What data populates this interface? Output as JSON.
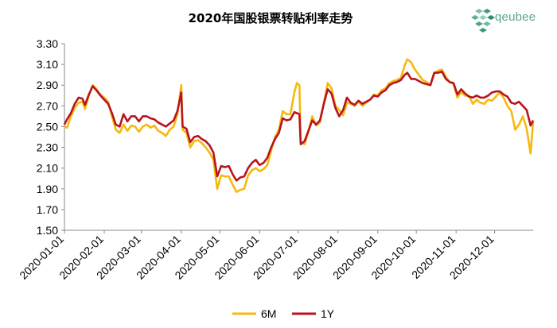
{
  "logo": {
    "text": "qeubee"
  },
  "chart_data": {
    "type": "line",
    "title": "2020年国股银票转贴利率走势",
    "xlabel": "",
    "ylabel": "",
    "ylim": [
      1.5,
      3.3
    ],
    "yticks": [
      "1.50",
      "1.70",
      "1.90",
      "2.10",
      "2.30",
      "2.50",
      "2.70",
      "2.90",
      "3.10",
      "3.30"
    ],
    "xlim": [
      "2020-01-01",
      "2020-12-31"
    ],
    "xticks": [
      "2020-01-01",
      "2020-02-01",
      "2020-03-01",
      "2020-04-01",
      "2020-05-01",
      "2020-06-01",
      "2020-07-01",
      "2020-08-01",
      "2020-09-01",
      "2020-10-01",
      "2020-11-01",
      "2020-12-01"
    ],
    "grid": false,
    "legend": "bottom-center",
    "series": [
      {
        "name": "6M",
        "color": "#f5b90f",
        "points": [
          [
            "2020-01-01",
            2.5
          ],
          [
            "2020-01-03",
            2.49
          ],
          [
            "2020-01-06",
            2.6
          ],
          [
            "2020-01-09",
            2.68
          ],
          [
            "2020-01-12",
            2.73
          ],
          [
            "2020-01-15",
            2.74
          ],
          [
            "2020-01-17",
            2.67
          ],
          [
            "2020-01-20",
            2.8
          ],
          [
            "2020-01-23",
            2.9
          ],
          [
            "2020-01-26",
            2.86
          ],
          [
            "2020-01-29",
            2.81
          ],
          [
            "2020-02-01",
            2.78
          ],
          [
            "2020-02-04",
            2.74
          ],
          [
            "2020-02-07",
            2.6
          ],
          [
            "2020-02-10",
            2.47
          ],
          [
            "2020-02-13",
            2.44
          ],
          [
            "2020-02-16",
            2.52
          ],
          [
            "2020-02-19",
            2.46
          ],
          [
            "2020-02-22",
            2.51
          ],
          [
            "2020-02-25",
            2.5
          ],
          [
            "2020-02-28",
            2.45
          ],
          [
            "2020-03-02",
            2.5
          ],
          [
            "2020-03-05",
            2.52
          ],
          [
            "2020-03-08",
            2.49
          ],
          [
            "2020-03-11",
            2.51
          ],
          [
            "2020-03-14",
            2.46
          ],
          [
            "2020-03-17",
            2.44
          ],
          [
            "2020-03-20",
            2.41
          ],
          [
            "2020-03-23",
            2.47
          ],
          [
            "2020-03-26",
            2.5
          ],
          [
            "2020-03-29",
            2.62
          ],
          [
            "2020-04-01",
            2.9
          ],
          [
            "2020-04-02",
            2.47
          ],
          [
            "2020-04-05",
            2.44
          ],
          [
            "2020-04-08",
            2.3
          ],
          [
            "2020-04-11",
            2.36
          ],
          [
            "2020-04-14",
            2.37
          ],
          [
            "2020-04-17",
            2.34
          ],
          [
            "2020-04-20",
            2.3
          ],
          [
            "2020-04-23",
            2.25
          ],
          [
            "2020-04-26",
            2.18
          ],
          [
            "2020-04-29",
            1.9
          ],
          [
            "2020-05-02",
            2.03
          ],
          [
            "2020-05-05",
            2.02
          ],
          [
            "2020-05-08",
            2.02
          ],
          [
            "2020-05-11",
            1.94
          ],
          [
            "2020-05-14",
            1.87
          ],
          [
            "2020-05-17",
            1.89
          ],
          [
            "2020-05-20",
            1.9
          ],
          [
            "2020-05-23",
            2.03
          ],
          [
            "2020-05-26",
            2.08
          ],
          [
            "2020-05-29",
            2.1
          ],
          [
            "2020-06-01",
            2.07
          ],
          [
            "2020-06-04",
            2.09
          ],
          [
            "2020-06-07",
            2.13
          ],
          [
            "2020-06-10",
            2.27
          ],
          [
            "2020-06-13",
            2.4
          ],
          [
            "2020-06-16",
            2.47
          ],
          [
            "2020-06-19",
            2.65
          ],
          [
            "2020-06-22",
            2.62
          ],
          [
            "2020-06-25",
            2.62
          ],
          [
            "2020-06-28",
            2.83
          ],
          [
            "2020-06-30",
            2.92
          ],
          [
            "2020-07-02",
            2.9
          ],
          [
            "2020-07-03",
            2.35
          ],
          [
            "2020-07-06",
            2.33
          ],
          [
            "2020-07-09",
            2.45
          ],
          [
            "2020-07-12",
            2.6
          ],
          [
            "2020-07-15",
            2.51
          ],
          [
            "2020-07-18",
            2.54
          ],
          [
            "2020-07-21",
            2.73
          ],
          [
            "2020-07-24",
            2.92
          ],
          [
            "2020-07-27",
            2.87
          ],
          [
            "2020-07-30",
            2.7
          ],
          [
            "2020-08-02",
            2.66
          ],
          [
            "2020-08-05",
            2.61
          ],
          [
            "2020-08-08",
            2.73
          ],
          [
            "2020-08-11",
            2.72
          ],
          [
            "2020-08-14",
            2.7
          ],
          [
            "2020-08-17",
            2.74
          ],
          [
            "2020-08-20",
            2.7
          ],
          [
            "2020-08-23",
            2.73
          ],
          [
            "2020-08-26",
            2.76
          ],
          [
            "2020-08-29",
            2.81
          ],
          [
            "2020-09-01",
            2.8
          ],
          [
            "2020-09-04",
            2.85
          ],
          [
            "2020-09-07",
            2.87
          ],
          [
            "2020-09-10",
            2.92
          ],
          [
            "2020-09-13",
            2.94
          ],
          [
            "2020-09-16",
            2.95
          ],
          [
            "2020-09-19",
            2.97
          ],
          [
            "2020-09-22",
            3.09
          ],
          [
            "2020-09-24",
            3.15
          ],
          [
            "2020-09-27",
            3.12
          ],
          [
            "2020-09-30",
            3.05
          ],
          [
            "2020-10-03",
            3.0
          ],
          [
            "2020-10-06",
            2.95
          ],
          [
            "2020-10-09",
            2.93
          ],
          [
            "2020-10-12",
            2.9
          ],
          [
            "2020-10-15",
            3.01
          ],
          [
            "2020-10-18",
            3.04
          ],
          [
            "2020-10-21",
            3.05
          ],
          [
            "2020-10-24",
            2.98
          ],
          [
            "2020-10-27",
            2.93
          ],
          [
            "2020-10-30",
            2.91
          ],
          [
            "2020-11-02",
            2.78
          ],
          [
            "2020-11-05",
            2.83
          ],
          [
            "2020-11-08",
            2.8
          ],
          [
            "2020-11-11",
            2.8
          ],
          [
            "2020-11-14",
            2.72
          ],
          [
            "2020-11-17",
            2.76
          ],
          [
            "2020-11-20",
            2.73
          ],
          [
            "2020-11-23",
            2.72
          ],
          [
            "2020-11-26",
            2.76
          ],
          [
            "2020-11-29",
            2.75
          ],
          [
            "2020-12-02",
            2.79
          ],
          [
            "2020-12-05",
            2.83
          ],
          [
            "2020-12-08",
            2.78
          ],
          [
            "2020-12-11",
            2.7
          ],
          [
            "2020-12-14",
            2.65
          ],
          [
            "2020-12-17",
            2.47
          ],
          [
            "2020-12-20",
            2.52
          ],
          [
            "2020-12-23",
            2.6
          ],
          [
            "2020-12-26",
            2.48
          ],
          [
            "2020-12-29",
            2.24
          ],
          [
            "2020-12-31",
            2.55
          ]
        ]
      },
      {
        "name": "1Y",
        "color": "#b8141f",
        "points": [
          [
            "2020-01-01",
            2.52
          ],
          [
            "2020-01-03",
            2.57
          ],
          [
            "2020-01-06",
            2.63
          ],
          [
            "2020-01-09",
            2.72
          ],
          [
            "2020-01-12",
            2.78
          ],
          [
            "2020-01-15",
            2.77
          ],
          [
            "2020-01-17",
            2.71
          ],
          [
            "2020-01-20",
            2.81
          ],
          [
            "2020-01-23",
            2.89
          ],
          [
            "2020-01-26",
            2.85
          ],
          [
            "2020-01-29",
            2.8
          ],
          [
            "2020-02-01",
            2.76
          ],
          [
            "2020-02-04",
            2.72
          ],
          [
            "2020-02-07",
            2.63
          ],
          [
            "2020-02-10",
            2.52
          ],
          [
            "2020-02-13",
            2.5
          ],
          [
            "2020-02-16",
            2.62
          ],
          [
            "2020-02-19",
            2.55
          ],
          [
            "2020-02-22",
            2.6
          ],
          [
            "2020-02-25",
            2.6
          ],
          [
            "2020-02-28",
            2.55
          ],
          [
            "2020-03-02",
            2.6
          ],
          [
            "2020-03-05",
            2.6
          ],
          [
            "2020-03-08",
            2.58
          ],
          [
            "2020-03-11",
            2.57
          ],
          [
            "2020-03-14",
            2.54
          ],
          [
            "2020-03-17",
            2.52
          ],
          [
            "2020-03-20",
            2.5
          ],
          [
            "2020-03-23",
            2.53
          ],
          [
            "2020-03-26",
            2.56
          ],
          [
            "2020-03-29",
            2.65
          ],
          [
            "2020-04-01",
            2.83
          ],
          [
            "2020-04-02",
            2.5
          ],
          [
            "2020-04-05",
            2.48
          ],
          [
            "2020-04-08",
            2.35
          ],
          [
            "2020-04-11",
            2.4
          ],
          [
            "2020-04-14",
            2.41
          ],
          [
            "2020-04-17",
            2.38
          ],
          [
            "2020-04-20",
            2.36
          ],
          [
            "2020-04-23",
            2.32
          ],
          [
            "2020-04-26",
            2.25
          ],
          [
            "2020-04-29",
            2.02
          ],
          [
            "2020-05-02",
            2.12
          ],
          [
            "2020-05-05",
            2.11
          ],
          [
            "2020-05-08",
            2.12
          ],
          [
            "2020-05-11",
            2.04
          ],
          [
            "2020-05-14",
            1.98
          ],
          [
            "2020-05-17",
            2.01
          ],
          [
            "2020-05-20",
            2.02
          ],
          [
            "2020-05-23",
            2.1
          ],
          [
            "2020-05-26",
            2.15
          ],
          [
            "2020-05-29",
            2.18
          ],
          [
            "2020-06-01",
            2.13
          ],
          [
            "2020-06-04",
            2.15
          ],
          [
            "2020-06-07",
            2.2
          ],
          [
            "2020-06-10",
            2.3
          ],
          [
            "2020-06-13",
            2.38
          ],
          [
            "2020-06-16",
            2.44
          ],
          [
            "2020-06-19",
            2.58
          ],
          [
            "2020-06-22",
            2.56
          ],
          [
            "2020-06-25",
            2.57
          ],
          [
            "2020-06-28",
            2.64
          ],
          [
            "2020-06-30",
            2.63
          ],
          [
            "2020-07-02",
            2.62
          ],
          [
            "2020-07-03",
            2.33
          ],
          [
            "2020-07-06",
            2.36
          ],
          [
            "2020-07-09",
            2.46
          ],
          [
            "2020-07-12",
            2.56
          ],
          [
            "2020-07-15",
            2.52
          ],
          [
            "2020-07-18",
            2.56
          ],
          [
            "2020-07-21",
            2.72
          ],
          [
            "2020-07-24",
            2.86
          ],
          [
            "2020-07-27",
            2.82
          ],
          [
            "2020-07-30",
            2.68
          ],
          [
            "2020-08-02",
            2.6
          ],
          [
            "2020-08-05",
            2.66
          ],
          [
            "2020-08-08",
            2.78
          ],
          [
            "2020-08-11",
            2.73
          ],
          [
            "2020-08-14",
            2.71
          ],
          [
            "2020-08-17",
            2.75
          ],
          [
            "2020-08-20",
            2.72
          ],
          [
            "2020-08-23",
            2.74
          ],
          [
            "2020-08-26",
            2.76
          ],
          [
            "2020-08-29",
            2.8
          ],
          [
            "2020-09-01",
            2.79
          ],
          [
            "2020-09-04",
            2.83
          ],
          [
            "2020-09-07",
            2.85
          ],
          [
            "2020-09-10",
            2.9
          ],
          [
            "2020-09-13",
            2.92
          ],
          [
            "2020-09-16",
            2.93
          ],
          [
            "2020-09-19",
            2.95
          ],
          [
            "2020-09-22",
            3.0
          ],
          [
            "2020-09-24",
            3.02
          ],
          [
            "2020-09-27",
            2.96
          ],
          [
            "2020-09-30",
            2.96
          ],
          [
            "2020-10-03",
            2.94
          ],
          [
            "2020-10-06",
            2.92
          ],
          [
            "2020-10-09",
            2.91
          ],
          [
            "2020-10-12",
            2.9
          ],
          [
            "2020-10-15",
            3.02
          ],
          [
            "2020-10-18",
            3.02
          ],
          [
            "2020-10-21",
            3.03
          ],
          [
            "2020-10-24",
            2.96
          ],
          [
            "2020-10-27",
            2.93
          ],
          [
            "2020-10-30",
            2.92
          ],
          [
            "2020-11-02",
            2.81
          ],
          [
            "2020-11-05",
            2.86
          ],
          [
            "2020-11-08",
            2.82
          ],
          [
            "2020-11-11",
            2.79
          ],
          [
            "2020-11-14",
            2.78
          ],
          [
            "2020-11-17",
            2.8
          ],
          [
            "2020-11-20",
            2.78
          ],
          [
            "2020-11-23",
            2.78
          ],
          [
            "2020-11-26",
            2.8
          ],
          [
            "2020-11-29",
            2.83
          ],
          [
            "2020-12-02",
            2.84
          ],
          [
            "2020-12-05",
            2.84
          ],
          [
            "2020-12-08",
            2.81
          ],
          [
            "2020-12-11",
            2.79
          ],
          [
            "2020-12-14",
            2.73
          ],
          [
            "2020-12-17",
            2.72
          ],
          [
            "2020-12-20",
            2.74
          ],
          [
            "2020-12-23",
            2.7
          ],
          [
            "2020-12-26",
            2.66
          ],
          [
            "2020-12-29",
            2.51
          ],
          [
            "2020-12-31",
            2.56
          ]
        ]
      }
    ]
  }
}
